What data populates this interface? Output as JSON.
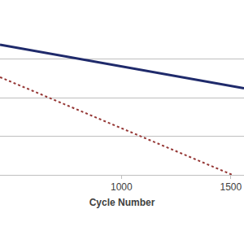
{
  "chart_data": {
    "type": "line",
    "xlabel": "Cycle Number",
    "xlim": [
      445,
      1560
    ],
    "xticks": [
      1000,
      1500
    ],
    "ylim": [
      0,
      4
    ],
    "yticks": [
      0,
      1,
      2,
      3,
      4
    ],
    "grid": true,
    "tick_labels": "x",
    "series": [
      {
        "color": "#1f2a6b",
        "line_style": "solid",
        "x": [
          445,
          1000,
          1560
        ],
        "values": [
          3.37,
          2.81,
          2.24
        ]
      },
      {
        "color": "#953735",
        "line_style": "dotted",
        "x": [
          445,
          1000,
          1507
        ],
        "values": [
          2.53,
          1.2,
          0
        ]
      }
    ]
  }
}
